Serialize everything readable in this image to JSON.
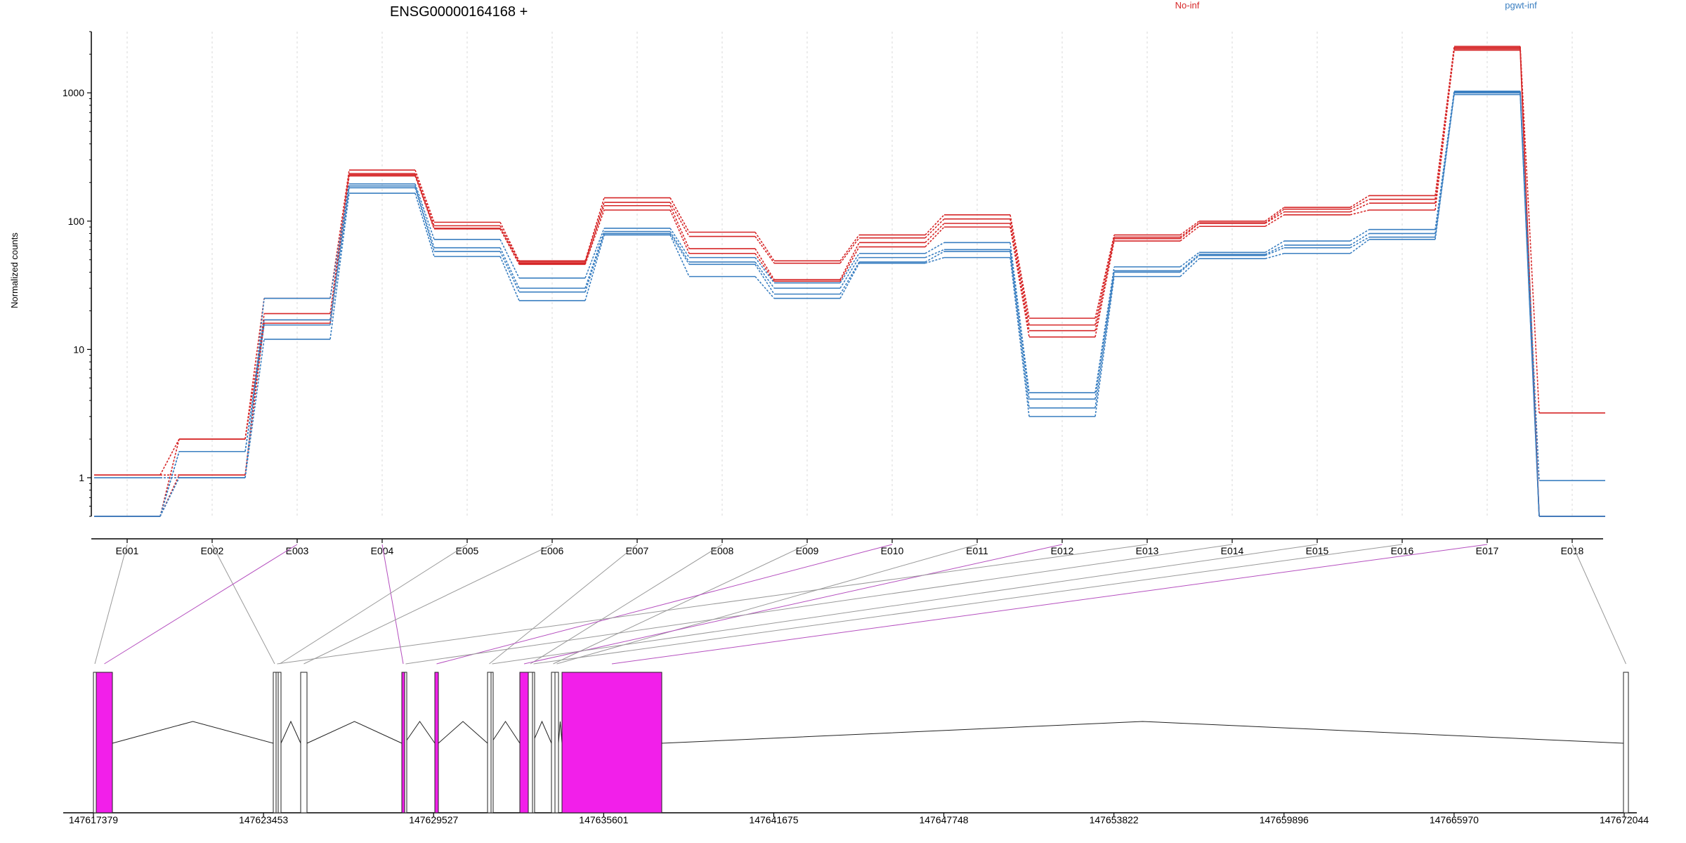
{
  "chart_data": {
    "type": "line",
    "title": "ENSG00000164168 +",
    "ylabel": "Normalized counts",
    "yscale": "log",
    "ylim": [
      0.5,
      3000
    ],
    "yticks": [
      1,
      10,
      100,
      1000
    ],
    "yticklabels": [
      "1",
      "10",
      "100",
      "1000"
    ],
    "legend": [
      {
        "label": "No-inf",
        "color": "#d62728"
      },
      {
        "label": "pgwt-inf",
        "color": "#3a7fc1"
      }
    ],
    "categories": [
      "E001",
      "E002",
      "E003",
      "E004",
      "E005",
      "E006",
      "E007",
      "E008",
      "E009",
      "E010",
      "E011",
      "E012",
      "E013",
      "E014",
      "E015",
      "E016",
      "E017",
      "E018"
    ],
    "highlighted_exons": [
      "E003",
      "E004",
      "E010",
      "E012",
      "E017"
    ],
    "series": [
      {
        "group": "No-inf",
        "color": "#d62728",
        "values": [
          1.05,
          2.0,
          25,
          250,
          98,
          49,
          152,
          82,
          49,
          78,
          112,
          17.5,
          78,
          100,
          128,
          158,
          2300,
          3.2
        ]
      },
      {
        "group": "No-inf",
        "color": "#d62728",
        "values": [
          1.05,
          1.05,
          19,
          235,
          92,
          48,
          140,
          76,
          47,
          74,
          104,
          15.5,
          75,
          97,
          124,
          148,
          2250,
          0.5
        ]
      },
      {
        "group": "No-inf",
        "color": "#d62728",
        "values": [
          0.5,
          2.0,
          17,
          230,
          88,
          47,
          132,
          61,
          35,
          68,
          96,
          14,
          73,
          96,
          118,
          138,
          2200,
          0.5
        ]
      },
      {
        "group": "No-inf",
        "color": "#d62728",
        "values": [
          0.5,
          1.05,
          16,
          225,
          87,
          46,
          122,
          56,
          34,
          63,
          90,
          12.5,
          70,
          91,
          112,
          122,
          2150,
          0.5
        ]
      },
      {
        "group": "pgwt-inf",
        "color": "#3a7fc1",
        "values": [
          1.0,
          1.0,
          25,
          195,
          72,
          36,
          88,
          52,
          33,
          56,
          68,
          4.6,
          44,
          57,
          70,
          86,
          1030,
          0.95
        ]
      },
      {
        "group": "pgwt-inf",
        "color": "#3a7fc1",
        "values": [
          0.5,
          1.6,
          17,
          188,
          62,
          30,
          83,
          48,
          30,
          52,
          60,
          4.1,
          41,
          55,
          65,
          80,
          1010,
          0.5
        ]
      },
      {
        "group": "pgwt-inf",
        "color": "#3a7fc1",
        "values": [
          0.5,
          1.6,
          15.5,
          182,
          58,
          28,
          80,
          46,
          27,
          48,
          58,
          3.5,
          40,
          54,
          62,
          75,
          1000,
          0.5
        ]
      },
      {
        "group": "pgwt-inf",
        "color": "#3a7fc1",
        "values": [
          0.5,
          1.0,
          12,
          165,
          53,
          24,
          78,
          37,
          25,
          47,
          52,
          3.0,
          37,
          51,
          56,
          72,
          970,
          0.5
        ]
      }
    ],
    "gene_model": {
      "xticklabels": [
        "147617379",
        "147623453",
        "147629527",
        "147635601",
        "147641675",
        "147647748",
        "147653822",
        "147659896",
        "147665970",
        "147672044"
      ],
      "highlight_color": "#f21fea",
      "exons": [
        {
          "id": "E001",
          "highlight": false
        },
        {
          "id": "E002",
          "highlight": false
        },
        {
          "id": "E003",
          "highlight": true
        },
        {
          "id": "E004",
          "highlight": true
        },
        {
          "id": "E005",
          "highlight": false
        },
        {
          "id": "E006",
          "highlight": false
        },
        {
          "id": "E007",
          "highlight": false
        },
        {
          "id": "E008",
          "highlight": false
        },
        {
          "id": "E009",
          "highlight": false
        },
        {
          "id": "E010",
          "highlight": true
        },
        {
          "id": "E011",
          "highlight": false
        },
        {
          "id": "E012",
          "highlight": true
        },
        {
          "id": "E013",
          "highlight": false
        },
        {
          "id": "E014",
          "highlight": false
        },
        {
          "id": "E015",
          "highlight": false
        },
        {
          "id": "E016",
          "highlight": false
        },
        {
          "id": "E017",
          "highlight": true
        },
        {
          "id": "E018",
          "highlight": false
        }
      ]
    }
  }
}
